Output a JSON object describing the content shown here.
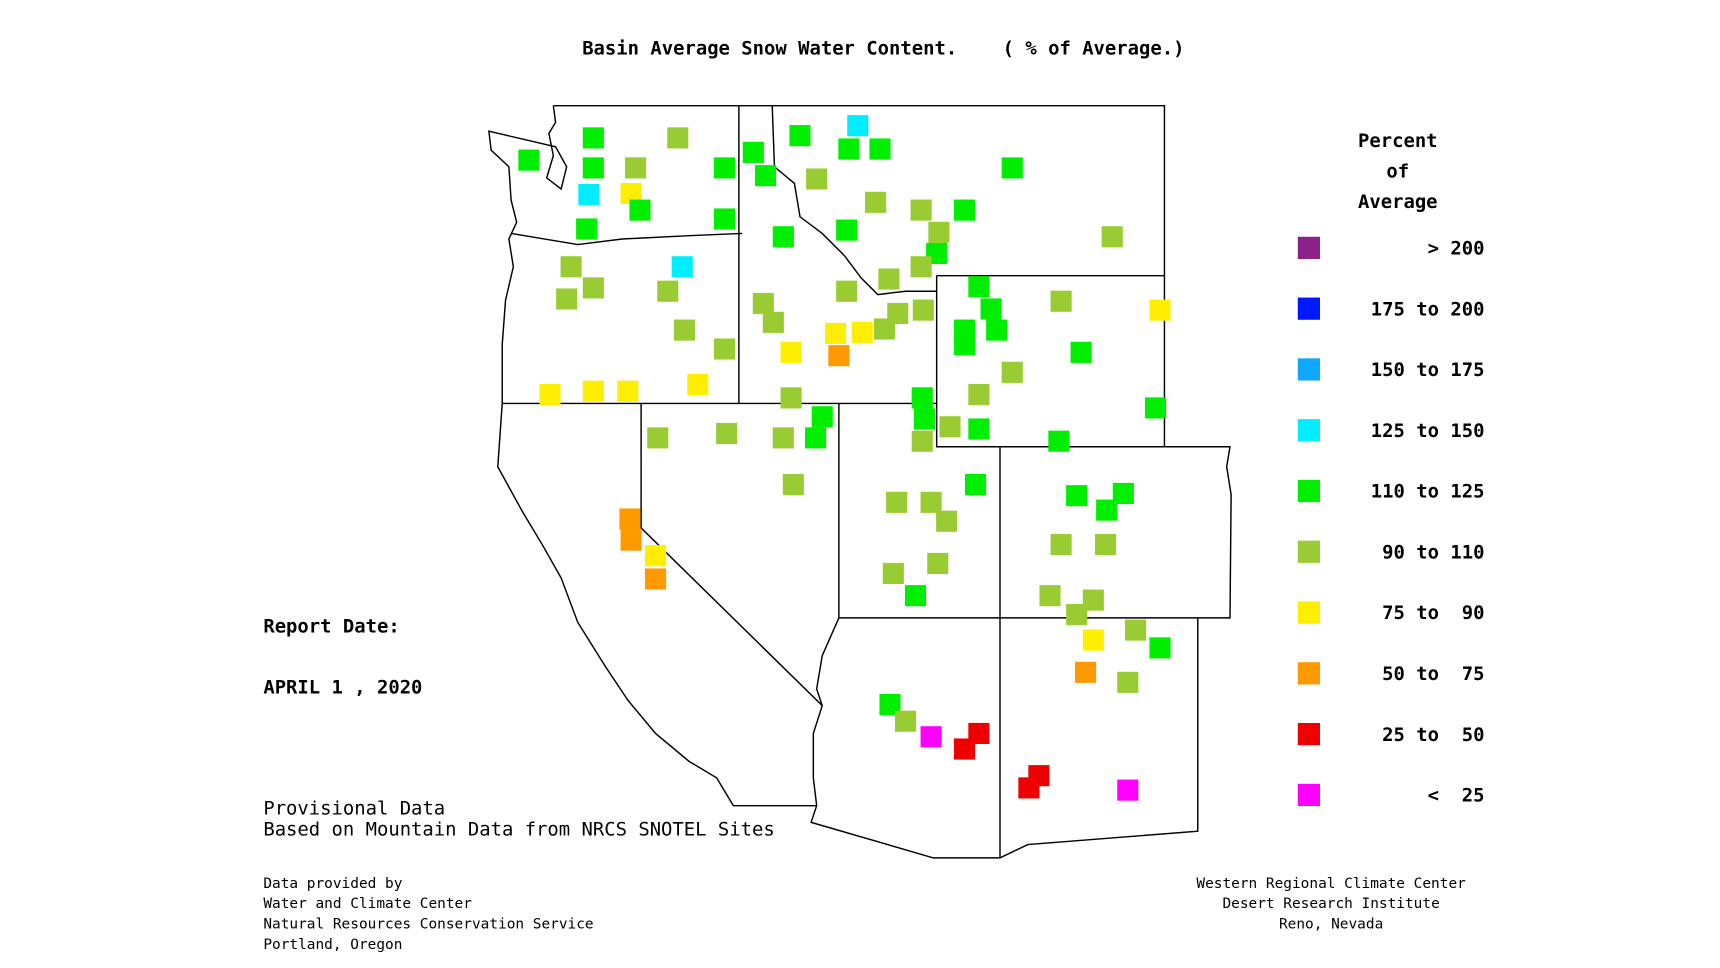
{
  "header": {
    "title": "Basin Average Snow Water Content.    ( % of Average.)"
  },
  "legend": {
    "title": [
      "Percent",
      "of",
      "Average"
    ],
    "items": [
      {
        "label": "> 200",
        "color": "#8b2388"
      },
      {
        "label": "175 to 200",
        "color": "#0018ff"
      },
      {
        "label": "150 to 175",
        "color": "#10a8ff"
      },
      {
        "label": "125 to 150",
        "color": "#00eeff"
      },
      {
        "label": "110 to 125",
        "color": "#00ee00"
      },
      {
        "label": "90 to 110",
        "color": "#99cc33"
      },
      {
        "label": "75 to  90",
        "color": "#ffee00"
      },
      {
        "label": "50 to  75",
        "color": "#ff9900"
      },
      {
        "label": "25 to  50",
        "color": "#ee0000"
      },
      {
        "label": "<  25",
        "color": "#ff00ff"
      }
    ]
  },
  "report": {
    "label": "Report Date:",
    "date": "APRIL 1 , 2020"
  },
  "notes": [
    "Provisional Data",
    "Based on Mountain Data from NRCS SNOTEL Sites"
  ],
  "credits_left": [
    "Data provided by",
    "Water and Climate Center",
    "Natural Resources Conservation Service",
    "Portland, Oregon"
  ],
  "credits_right": [
    "Western Regional Climate Center",
    "Desert Research Institute",
    "Reno, Nevada"
  ]
}
